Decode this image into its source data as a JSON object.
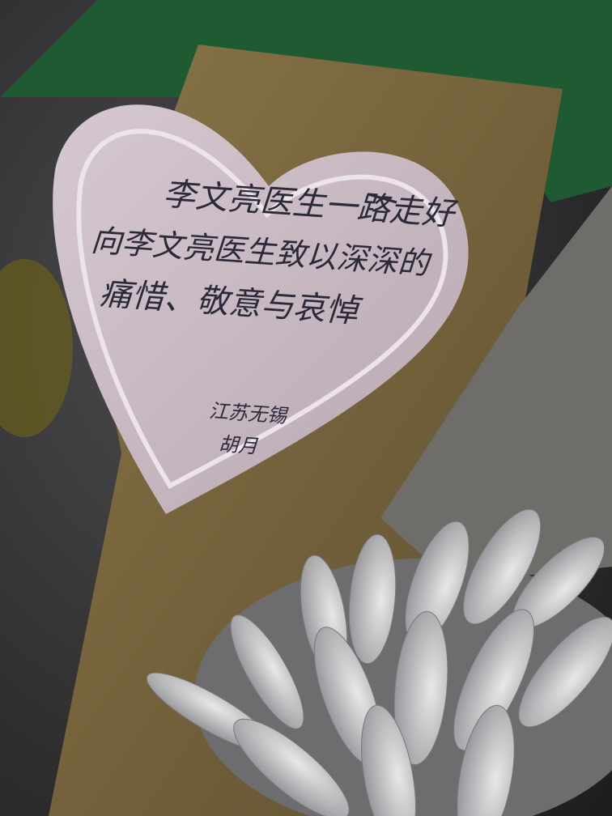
{
  "card": {
    "lines": [
      "李文亮医生一路走好",
      "向李文亮医生致以深深的",
      "痛惜、敬意与哀悼"
    ],
    "signature": [
      "江苏无锡",
      "胡月"
    ]
  }
}
